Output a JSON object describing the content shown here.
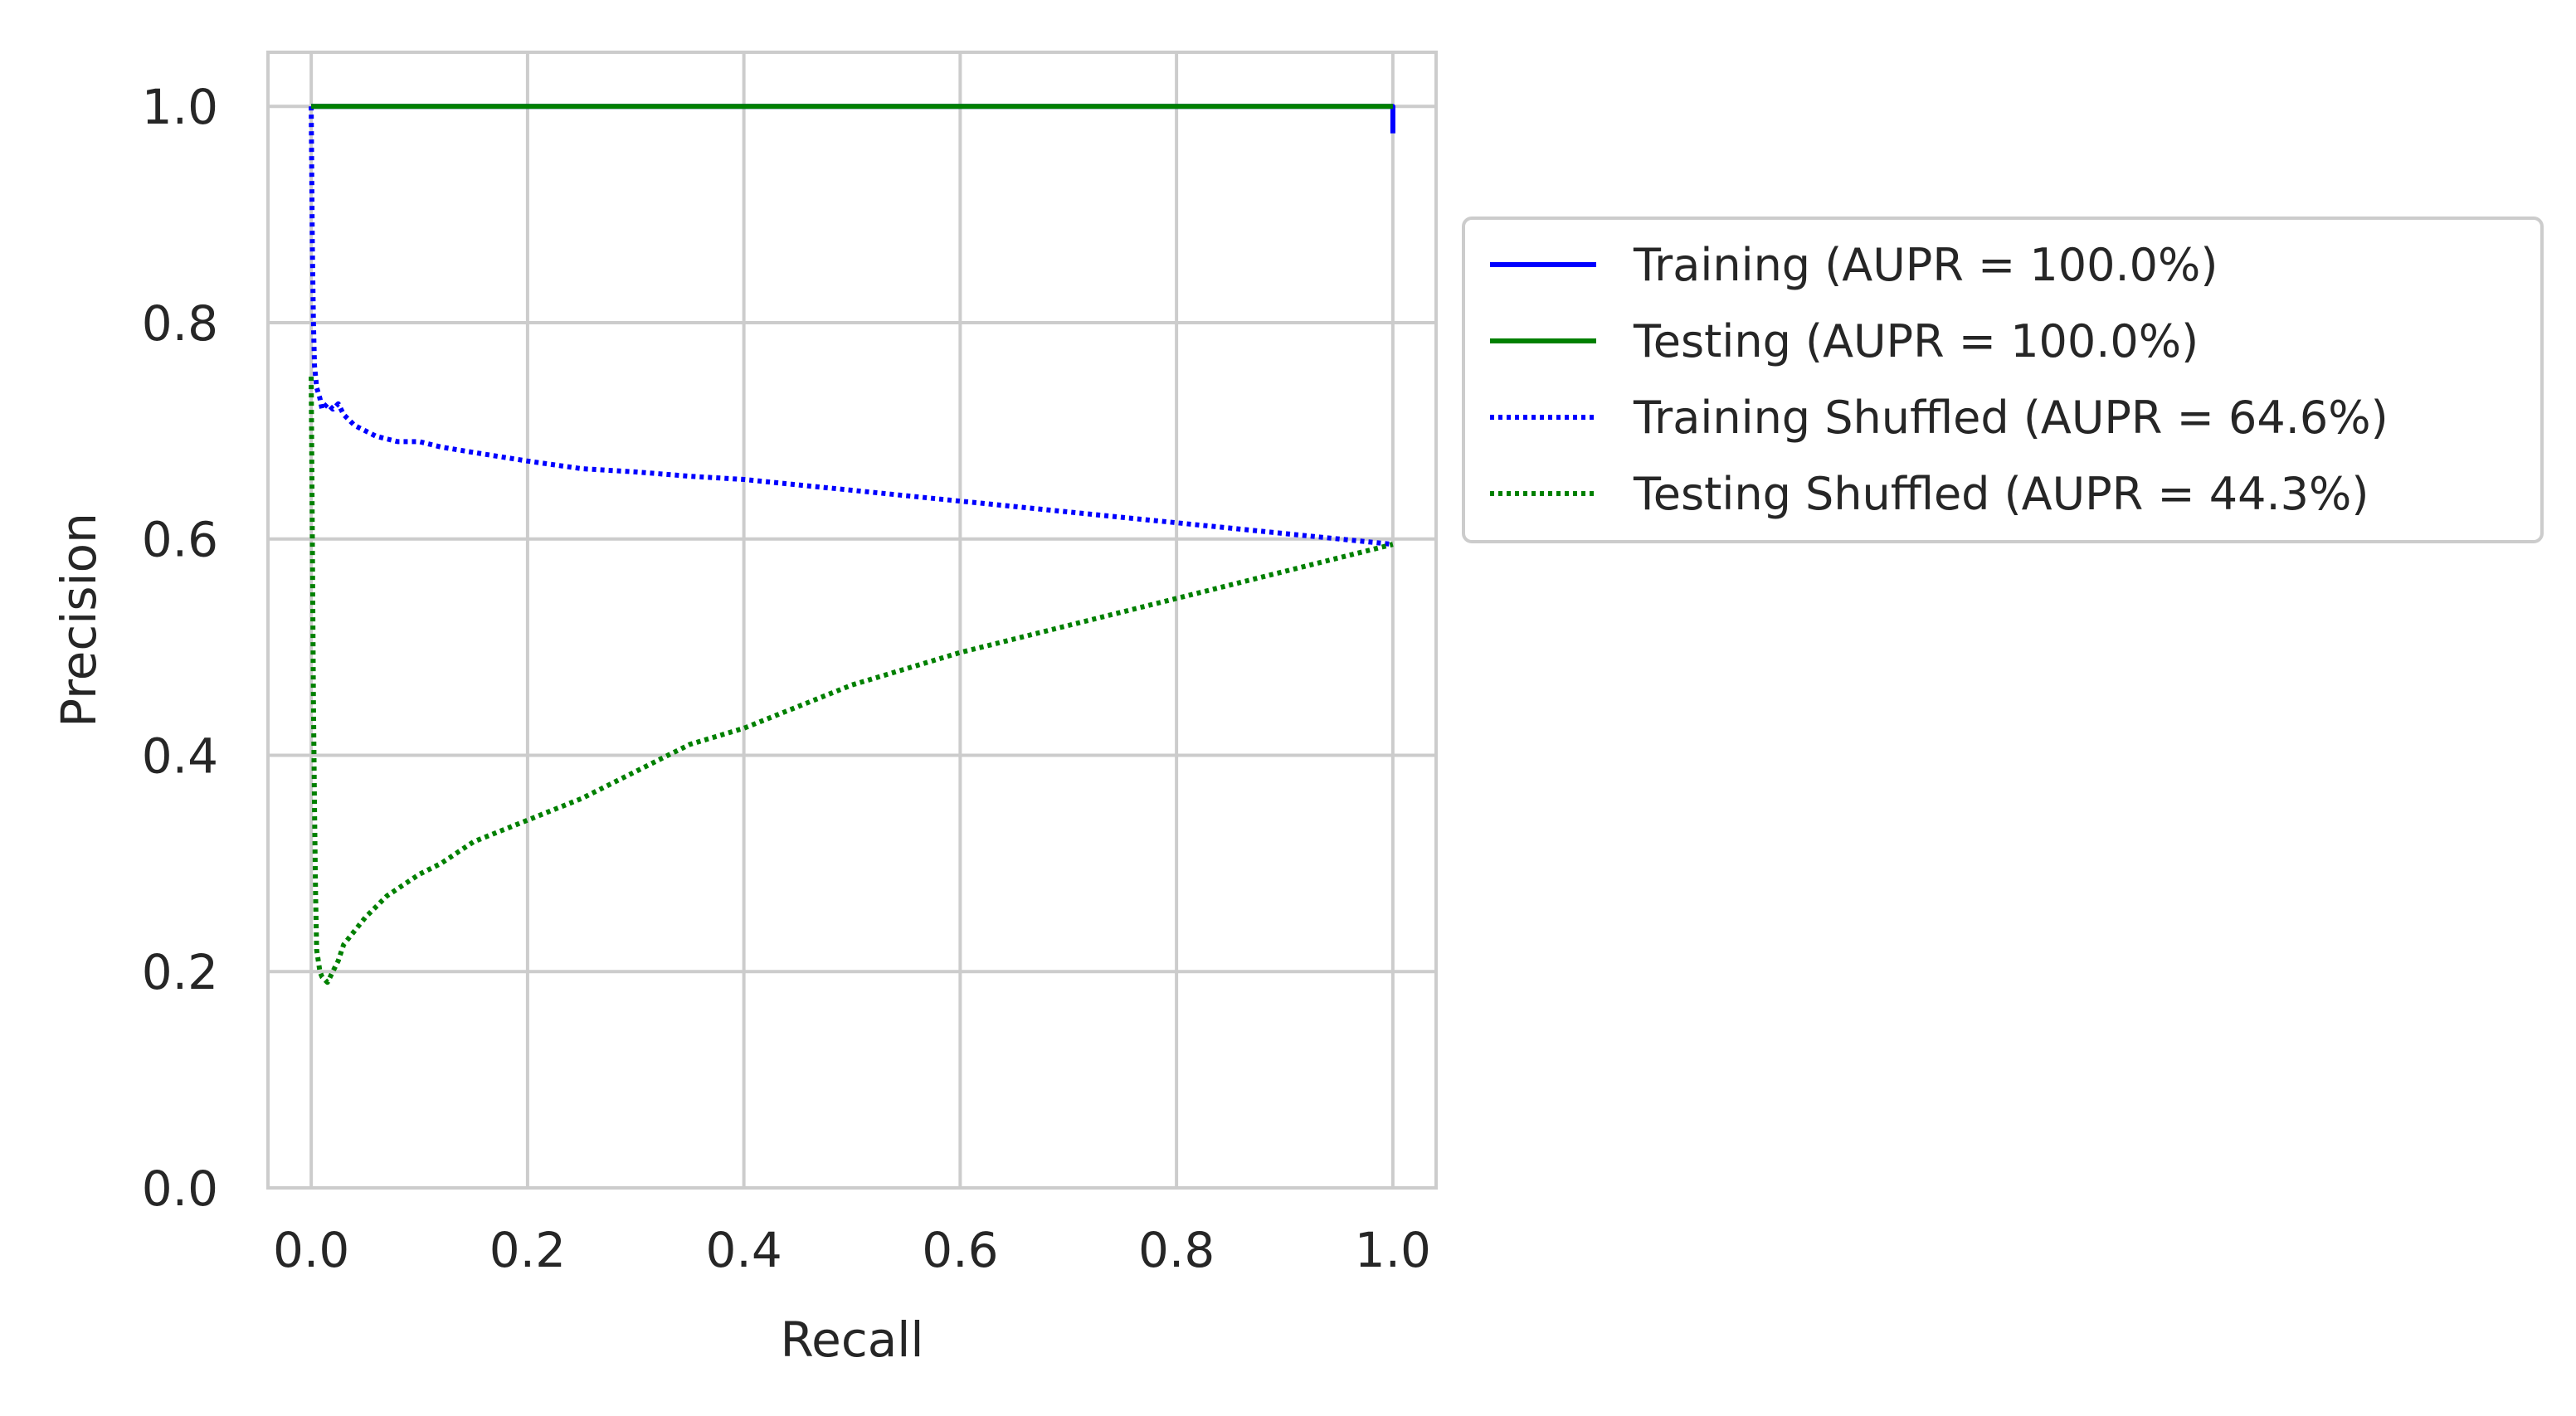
{
  "chart_data": {
    "type": "line",
    "title": "",
    "xlabel": "Recall",
    "ylabel": "Precision",
    "xlim": [
      -0.04,
      1.04
    ],
    "ylim": [
      0.0,
      1.05
    ],
    "xticks": [
      "0.0",
      "0.2",
      "0.4",
      "0.6",
      "0.8",
      "1.0"
    ],
    "yticks": [
      "0.0",
      "0.2",
      "0.4",
      "0.6",
      "0.8",
      "1.0"
    ],
    "grid": true,
    "legend_position": "outside-right",
    "series": [
      {
        "name": "Training (AUPR = 100.0%)",
        "color": "#0000ff",
        "linestyle": "solid",
        "x": [
          0.0,
          1.0,
          1.0
        ],
        "y": [
          1.0,
          1.0,
          0.975
        ]
      },
      {
        "name": "Testing (AUPR = 100.0%)",
        "color": "#008000",
        "linestyle": "solid",
        "x": [
          0.0,
          1.0
        ],
        "y": [
          1.0,
          1.0
        ]
      },
      {
        "name": "Training Shuffled (AUPR = 64.6%)",
        "color": "#0000ff",
        "linestyle": "dotted",
        "x": [
          0.0,
          0.001,
          0.002,
          0.003,
          0.005,
          0.008,
          0.01,
          0.015,
          0.02,
          0.025,
          0.03,
          0.04,
          0.05,
          0.06,
          0.08,
          0.1,
          0.12,
          0.15,
          0.2,
          0.25,
          0.3,
          0.35,
          0.4,
          0.5,
          0.6,
          0.7,
          0.8,
          0.9,
          1.0
        ],
        "y": [
          1.0,
          0.87,
          0.8,
          0.76,
          0.74,
          0.73,
          0.72,
          0.725,
          0.72,
          0.725,
          0.715,
          0.705,
          0.7,
          0.695,
          0.69,
          0.69,
          0.685,
          0.68,
          0.672,
          0.665,
          0.662,
          0.658,
          0.655,
          0.645,
          0.635,
          0.625,
          0.615,
          0.605,
          0.595
        ]
      },
      {
        "name": "Testing Shuffled (AUPR = 44.3%)",
        "color": "#008000",
        "linestyle": "dotted",
        "x": [
          0.0,
          0.001,
          0.002,
          0.003,
          0.004,
          0.005,
          0.008,
          0.01,
          0.015,
          0.02,
          0.025,
          0.03,
          0.05,
          0.07,
          0.1,
          0.12,
          0.15,
          0.2,
          0.25,
          0.3,
          0.35,
          0.4,
          0.5,
          0.6,
          0.7,
          0.8,
          0.9,
          1.0
        ],
        "y": [
          0.75,
          0.6,
          0.45,
          0.35,
          0.27,
          0.22,
          0.2,
          0.195,
          0.19,
          0.2,
          0.21,
          0.225,
          0.25,
          0.27,
          0.29,
          0.3,
          0.32,
          0.34,
          0.36,
          0.385,
          0.41,
          0.425,
          0.465,
          0.495,
          0.52,
          0.545,
          0.57,
          0.595
        ]
      }
    ]
  }
}
